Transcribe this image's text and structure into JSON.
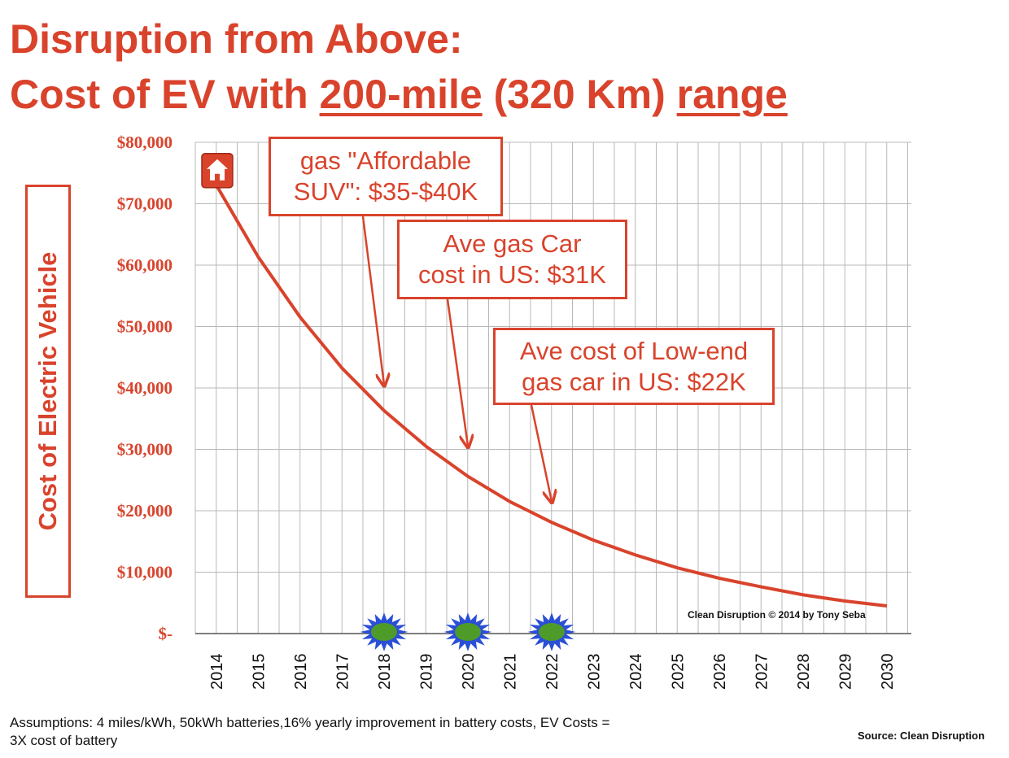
{
  "title": {
    "line1": "Disruption from Above:",
    "line2_prefix": "Cost of EV with ",
    "line2_underline1": "200-mile",
    "line2_middle": " (320 Km) ",
    "line2_underline2": "range"
  },
  "chart_data": {
    "type": "line",
    "ylabel": "Cost of Electric Vehicle",
    "ylim": [
      0,
      80000
    ],
    "ytick_labels": [
      "$-",
      "$10,000",
      "$20,000",
      "$30,000",
      "$40,000",
      "$50,000",
      "$60,000",
      "$70,000",
      "$80,000"
    ],
    "ytick_values": [
      0,
      10000,
      20000,
      30000,
      40000,
      50000,
      60000,
      70000,
      80000
    ],
    "x_tick_labels": [
      "2014",
      "2015",
      "2016",
      "2017",
      "2018",
      "2019",
      "2020",
      "2021",
      "2022",
      "2023",
      "2024",
      "2025",
      "2026",
      "2027",
      "2028",
      "2029",
      "2030"
    ],
    "grid": true,
    "series": [
      {
        "color": "#d9432c",
        "x": [
          2014,
          2015,
          2016,
          2017,
          2018,
          2019,
          2020,
          2021,
          2022,
          2023,
          2024,
          2025,
          2026,
          2027,
          2028,
          2029,
          2030
        ],
        "values": [
          73000,
          61300,
          51500,
          43200,
          36300,
          30500,
          25600,
          21500,
          18100,
          15200,
          12800,
          10700,
          9000,
          7600,
          6300,
          5300,
          4500
        ]
      }
    ],
    "annotations": [
      {
        "text": "gas \"Affordable\nSUV\": $35-$40K",
        "x": 2018,
        "y": 40000
      },
      {
        "text": "Ave gas Car\ncost in US: $31K",
        "x": 2020,
        "y": 30000
      },
      {
        "text": "Ave cost of Low-end\ngas car in US: $22K",
        "x": 2022,
        "y": 21000
      }
    ],
    "markers": [
      {
        "icon": "home-icon",
        "x": 2014,
        "y": 75000
      },
      {
        "icon": "green-starburst-icon",
        "x": 2018,
        "y": 0
      },
      {
        "icon": "green-starburst-icon",
        "x": 2020,
        "y": 0
      },
      {
        "icon": "green-starburst-icon",
        "x": 2022,
        "y": 0
      }
    ],
    "credit": "Clean Disruption © 2014 by Tony Seba"
  },
  "footer": {
    "assumptions": "Assumptions: 4 miles/kWh, 50kWh batteries,16% yearly improvement in battery costs, EV Costs = 3X cost of battery",
    "source": "Source: Clean Disruption"
  },
  "colors": {
    "accent": "#d9432c",
    "grid": "#b8b8b8",
    "starburst_outer": "#2a4fd6",
    "starburst_inner": "#4e9b2a"
  }
}
